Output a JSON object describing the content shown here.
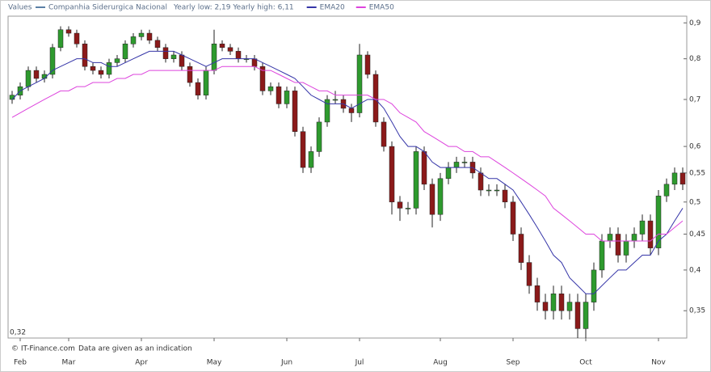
{
  "chart_data": {
    "type": "candlestick",
    "legend_title": "Values",
    "info": "Yearly low: 2,19 Yearly high: 6,11",
    "footer_source": "© IT-Finance.com",
    "footer_note": "Data are given as an indication",
    "log_y": true,
    "ylim": [
      0.32,
      0.92
    ],
    "yticks": [
      {
        "value": 0.32,
        "label": "0,32"
      },
      {
        "value": 0.35,
        "label": "0,35"
      },
      {
        "value": 0.4,
        "label": "0,4"
      },
      {
        "value": 0.45,
        "label": "0,45"
      },
      {
        "value": 0.5,
        "label": "0,5"
      },
      {
        "value": 0.55,
        "label": "0,55"
      },
      {
        "value": 0.6,
        "label": "0,6"
      },
      {
        "value": 0.7,
        "label": "0,7"
      },
      {
        "value": 0.8,
        "label": "0,8"
      },
      {
        "value": 0.9,
        "label": "0,9"
      }
    ],
    "categories": [
      null,
      "Feb",
      null,
      null,
      null,
      null,
      null,
      "Mar",
      null,
      null,
      null,
      null,
      null,
      null,
      null,
      null,
      "Apr",
      null,
      null,
      null,
      null,
      null,
      null,
      null,
      null,
      "May",
      null,
      null,
      null,
      null,
      null,
      null,
      null,
      null,
      "Jun",
      null,
      null,
      null,
      null,
      null,
      null,
      null,
      null,
      "Jul",
      null,
      null,
      null,
      null,
      null,
      null,
      null,
      null,
      null,
      "Aug",
      null,
      null,
      null,
      null,
      null,
      null,
      null,
      null,
      "Sep",
      null,
      null,
      null,
      null,
      null,
      null,
      null,
      null,
      "Oct",
      null,
      null,
      null,
      null,
      null,
      null,
      null,
      null,
      "Nov",
      null,
      null,
      null
    ],
    "series": [
      {
        "name": "Companhia Siderurgica Nacional",
        "color": "#5b7fa6",
        "up_color": "#2e9a2e",
        "down_color": "#8b1a1a",
        "open": [
          0.7,
          0.71,
          0.73,
          0.77,
          0.75,
          0.76,
          0.83,
          0.88,
          0.87,
          0.84,
          0.78,
          0.77,
          0.76,
          0.79,
          0.8,
          0.84,
          0.86,
          0.87,
          0.85,
          0.83,
          0.8,
          0.81,
          0.78,
          0.74,
          0.71,
          0.77,
          0.84,
          0.83,
          0.82,
          0.8,
          0.8,
          0.78,
          0.72,
          0.73,
          0.69,
          0.72,
          0.63,
          0.56,
          0.59,
          0.65,
          0.7,
          0.7,
          0.68,
          0.67,
          0.81,
          0.76,
          0.65,
          0.6,
          0.5,
          0.49,
          0.49,
          0.59,
          0.53,
          0.48,
          0.54,
          0.56,
          0.57,
          0.57,
          0.55,
          0.52,
          0.52,
          0.52,
          0.5,
          0.45,
          0.41,
          0.38,
          0.36,
          0.35,
          0.37,
          0.35,
          0.36,
          0.33,
          0.36,
          0.4,
          0.44,
          0.45,
          0.42,
          0.44,
          0.45,
          0.47,
          0.43,
          0.51,
          0.53,
          0.55
        ],
        "high": [
          0.72,
          0.74,
          0.78,
          0.78,
          0.77,
          0.84,
          0.89,
          0.89,
          0.88,
          0.85,
          0.79,
          0.78,
          0.8,
          0.81,
          0.85,
          0.87,
          0.88,
          0.88,
          0.86,
          0.84,
          0.82,
          0.82,
          0.79,
          0.75,
          0.78,
          0.88,
          0.85,
          0.84,
          0.83,
          0.81,
          0.81,
          0.79,
          0.74,
          0.74,
          0.73,
          0.73,
          0.64,
          0.6,
          0.66,
          0.71,
          0.72,
          0.71,
          0.69,
          0.84,
          0.82,
          0.77,
          0.66,
          0.61,
          0.51,
          0.5,
          0.6,
          0.6,
          0.54,
          0.55,
          0.57,
          0.58,
          0.58,
          0.58,
          0.56,
          0.53,
          0.53,
          0.53,
          0.51,
          0.46,
          0.42,
          0.39,
          0.37,
          0.38,
          0.38,
          0.37,
          0.37,
          0.37,
          0.41,
          0.45,
          0.46,
          0.46,
          0.45,
          0.46,
          0.48,
          0.48,
          0.52,
          0.54,
          0.56,
          0.56
        ],
        "low": [
          0.69,
          0.7,
          0.72,
          0.74,
          0.74,
          0.75,
          0.82,
          0.86,
          0.83,
          0.77,
          0.76,
          0.75,
          0.75,
          0.78,
          0.79,
          0.83,
          0.85,
          0.84,
          0.82,
          0.79,
          0.79,
          0.77,
          0.73,
          0.7,
          0.7,
          0.76,
          0.82,
          0.81,
          0.79,
          0.79,
          0.77,
          0.71,
          0.71,
          0.68,
          0.68,
          0.62,
          0.55,
          0.55,
          0.58,
          0.64,
          0.69,
          0.67,
          0.65,
          0.66,
          0.75,
          0.64,
          0.59,
          0.48,
          0.47,
          0.48,
          0.48,
          0.52,
          0.46,
          0.47,
          0.53,
          0.55,
          0.56,
          0.54,
          0.51,
          0.51,
          0.51,
          0.49,
          0.44,
          0.4,
          0.37,
          0.35,
          0.34,
          0.34,
          0.34,
          0.34,
          0.32,
          0.32,
          0.35,
          0.39,
          0.43,
          0.41,
          0.41,
          0.43,
          0.44,
          0.42,
          0.42,
          0.5,
          0.52,
          0.52
        ],
        "close": [
          0.71,
          0.73,
          0.77,
          0.75,
          0.76,
          0.83,
          0.88,
          0.87,
          0.84,
          0.78,
          0.77,
          0.76,
          0.79,
          0.8,
          0.84,
          0.86,
          0.87,
          0.85,
          0.83,
          0.8,
          0.81,
          0.78,
          0.74,
          0.71,
          0.77,
          0.84,
          0.83,
          0.82,
          0.8,
          0.8,
          0.78,
          0.72,
          0.73,
          0.69,
          0.72,
          0.63,
          0.56,
          0.59,
          0.65,
          0.7,
          0.7,
          0.68,
          0.67,
          0.81,
          0.76,
          0.65,
          0.6,
          0.5,
          0.49,
          0.49,
          0.59,
          0.53,
          0.48,
          0.54,
          0.56,
          0.57,
          0.57,
          0.55,
          0.52,
          0.52,
          0.52,
          0.5,
          0.45,
          0.41,
          0.38,
          0.36,
          0.35,
          0.37,
          0.35,
          0.36,
          0.33,
          0.36,
          0.4,
          0.44,
          0.45,
          0.42,
          0.44,
          0.45,
          0.47,
          0.43,
          0.51,
          0.53,
          0.55,
          0.53
        ]
      },
      {
        "name": "EMA20",
        "color": "#3535a8",
        "values": [
          0.7,
          0.72,
          0.73,
          0.74,
          0.75,
          0.77,
          0.78,
          0.79,
          0.8,
          0.8,
          0.79,
          0.79,
          0.78,
          0.78,
          0.79,
          0.8,
          0.81,
          0.82,
          0.82,
          0.82,
          0.82,
          0.81,
          0.8,
          0.79,
          0.78,
          0.79,
          0.8,
          0.8,
          0.8,
          0.8,
          0.8,
          0.79,
          0.78,
          0.77,
          0.76,
          0.75,
          0.73,
          0.71,
          0.7,
          0.69,
          0.69,
          0.69,
          0.68,
          0.69,
          0.7,
          0.7,
          0.68,
          0.65,
          0.62,
          0.6,
          0.6,
          0.59,
          0.57,
          0.56,
          0.56,
          0.56,
          0.56,
          0.56,
          0.55,
          0.54,
          0.54,
          0.53,
          0.52,
          0.5,
          0.48,
          0.46,
          0.44,
          0.42,
          0.41,
          0.39,
          0.38,
          0.37,
          0.37,
          0.38,
          0.39,
          0.4,
          0.4,
          0.41,
          0.42,
          0.42,
          0.44,
          0.45,
          0.47,
          0.49
        ]
      },
      {
        "name": "EMA50",
        "color": "#dd44dd",
        "values": [
          0.66,
          0.67,
          0.68,
          0.69,
          0.7,
          0.71,
          0.72,
          0.72,
          0.73,
          0.73,
          0.74,
          0.74,
          0.74,
          0.75,
          0.75,
          0.76,
          0.76,
          0.77,
          0.77,
          0.77,
          0.77,
          0.77,
          0.77,
          0.77,
          0.77,
          0.77,
          0.78,
          0.78,
          0.78,
          0.78,
          0.78,
          0.77,
          0.77,
          0.76,
          0.75,
          0.74,
          0.74,
          0.73,
          0.72,
          0.72,
          0.71,
          0.71,
          0.71,
          0.71,
          0.71,
          0.7,
          0.7,
          0.69,
          0.67,
          0.66,
          0.65,
          0.63,
          0.62,
          0.61,
          0.6,
          0.6,
          0.59,
          0.59,
          0.58,
          0.58,
          0.57,
          0.56,
          0.55,
          0.54,
          0.53,
          0.52,
          0.51,
          0.49,
          0.48,
          0.47,
          0.46,
          0.45,
          0.45,
          0.44,
          0.44,
          0.44,
          0.44,
          0.44,
          0.44,
          0.44,
          0.45,
          0.45,
          0.46,
          0.47
        ]
      }
    ]
  }
}
